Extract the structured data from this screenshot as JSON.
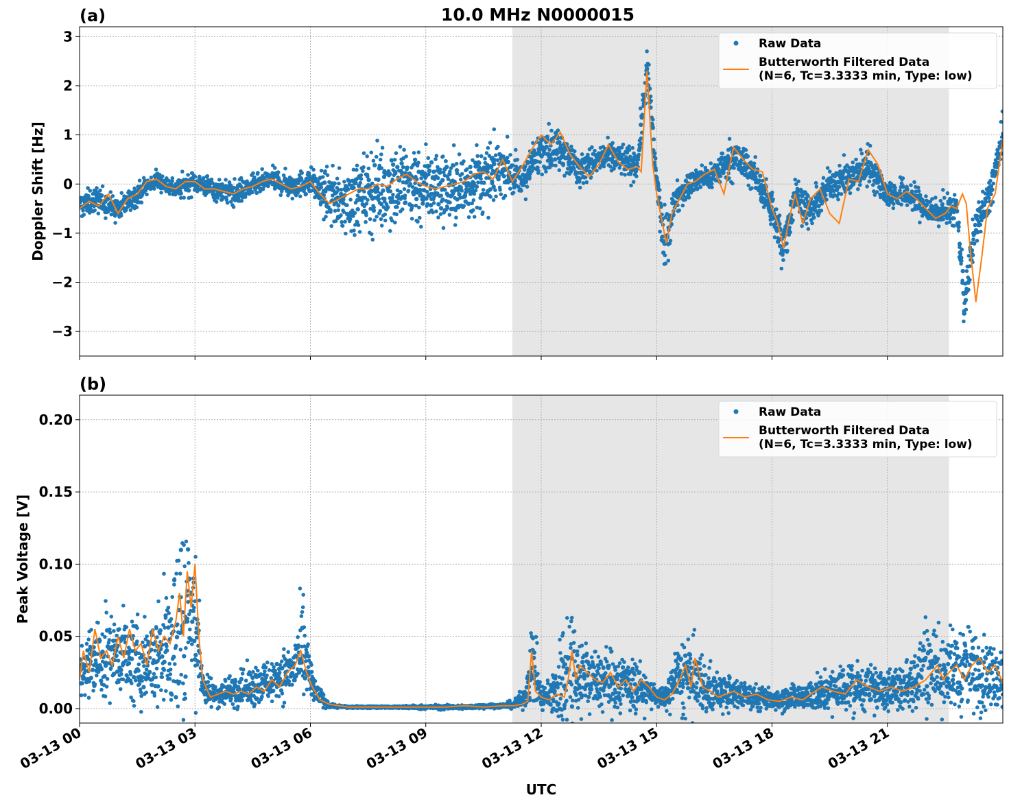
{
  "figure": {
    "title": "10.0 MHz N0000015",
    "xlabel": "UTC",
    "x_tick_labels": [
      "03-13 00",
      "03-13 03",
      "03-13 06",
      "03-13 09",
      "03-13 12",
      "03-13 15",
      "03-13 18",
      "03-13 21"
    ],
    "x_tick_hours": [
      0,
      3,
      6,
      9,
      12,
      15,
      18,
      21
    ],
    "x_range_hours": [
      0,
      24
    ],
    "shaded_interval_hours": [
      11.25,
      22.6
    ],
    "colors": {
      "raw": "#1f77b4",
      "filtered": "#ff7f0e",
      "shade": "#e6e6e6",
      "grid": "#b0b0b0"
    },
    "legend_placement": "top-right"
  },
  "chart_data": [
    {
      "type": "scatter",
      "panel_label": "(a)",
      "ylabel": "Doppler Shift [Hz]",
      "ylim": [
        -3.5,
        3.2
      ],
      "y_ticks": [
        3,
        2,
        1,
        0,
        -1,
        -2,
        -3
      ],
      "y_tick_labels": [
        "3",
        "2",
        "1",
        "0",
        "−1",
        "−2",
        "−3"
      ],
      "grid": true,
      "legend": [
        {
          "label": "Raw Data",
          "marker": "dot"
        },
        {
          "label": "Butterworth Filtered Data",
          "label_line2": "(N=6, Tc=3.3333 min, Type: low)",
          "marker": "line"
        }
      ],
      "series": [
        {
          "name": "Raw Data",
          "x_hours": [
            0,
            0.5,
            1,
            1.5,
            2,
            2.5,
            3,
            3.5,
            4,
            4.5,
            5,
            5.5,
            6,
            6.5,
            7,
            7.5,
            8,
            8.5,
            9,
            9.5,
            10,
            10.5,
            11,
            11.5,
            12,
            12.5,
            13,
            13.5,
            14,
            14.5,
            14.75,
            15,
            15.2,
            15.5,
            16,
            16.5,
            17,
            17.5,
            18,
            18.3,
            18.6,
            19,
            19.5,
            20,
            20.5,
            21,
            21.5,
            22,
            22.5,
            22.8,
            23,
            23.3,
            23.6,
            24
          ],
          "center": [
            -0.45,
            -0.3,
            -0.55,
            -0.2,
            0.1,
            -0.1,
            0.05,
            -0.1,
            -0.2,
            -0.05,
            0.1,
            -0.05,
            0.05,
            -0.3,
            -0.4,
            -0.15,
            -0.05,
            0.0,
            0.0,
            -0.1,
            -0.05,
            0.1,
            0.35,
            0.05,
            0.7,
            0.75,
            0.25,
            0.5,
            0.55,
            0.35,
            2.4,
            0.1,
            -1.3,
            -0.25,
            0.05,
            0.2,
            0.55,
            0.25,
            -0.5,
            -1.3,
            -0.2,
            -0.6,
            0.0,
            0.1,
            0.4,
            -0.2,
            -0.2,
            -0.5,
            -0.55,
            -0.5,
            -2.4,
            -0.8,
            -0.4,
            0.9
          ],
          "spread": [
            0.35,
            0.35,
            0.35,
            0.3,
            0.25,
            0.3,
            0.3,
            0.3,
            0.35,
            0.3,
            0.3,
            0.35,
            0.35,
            0.7,
            0.9,
            1.1,
            1.2,
            1.2,
            1.1,
            1.0,
            1.0,
            0.9,
            0.7,
            0.5,
            0.55,
            0.55,
            0.45,
            0.45,
            0.45,
            0.45,
            0.6,
            0.45,
            0.8,
            0.4,
            0.35,
            0.4,
            0.55,
            0.45,
            0.5,
            0.7,
            0.5,
            0.45,
            0.4,
            0.5,
            0.55,
            0.4,
            0.4,
            0.45,
            0.45,
            0.4,
            0.7,
            0.5,
            0.5,
            0.6
          ]
        },
        {
          "name": "Butterworth Filtered Data",
          "x_hours": [
            0,
            0.25,
            0.5,
            0.75,
            1,
            1.25,
            1.5,
            1.75,
            2,
            2.25,
            2.5,
            2.75,
            3,
            3.25,
            3.5,
            3.75,
            4,
            4.25,
            4.5,
            4.75,
            5,
            5.25,
            5.5,
            5.75,
            6,
            6.25,
            6.5,
            6.75,
            7,
            7.25,
            7.5,
            7.75,
            8,
            8.25,
            8.5,
            8.75,
            9,
            9.25,
            9.5,
            9.75,
            10,
            10.25,
            10.5,
            10.75,
            11,
            11.25,
            11.5,
            11.75,
            12,
            12.25,
            12.5,
            12.75,
            13,
            13.25,
            13.5,
            13.75,
            14,
            14.25,
            14.5,
            14.6,
            14.75,
            14.9,
            15,
            15.1,
            15.25,
            15.4,
            15.6,
            15.8,
            16,
            16.25,
            16.5,
            16.75,
            17,
            17.25,
            17.5,
            17.75,
            18,
            18.15,
            18.3,
            18.45,
            18.6,
            18.8,
            19,
            19.25,
            19.5,
            19.75,
            20,
            20.25,
            20.5,
            20.75,
            21,
            21.25,
            21.5,
            21.75,
            22,
            22.25,
            22.5,
            22.65,
            22.8,
            22.95,
            23.05,
            23.15,
            23.3,
            23.45,
            23.6,
            23.8,
            24
          ],
          "values": [
            -0.5,
            -0.35,
            -0.45,
            -0.2,
            -0.6,
            -0.3,
            -0.2,
            0.05,
            0.1,
            -0.05,
            -0.1,
            0.05,
            0.05,
            -0.1,
            -0.1,
            -0.15,
            -0.2,
            -0.1,
            -0.05,
            0.05,
            0.1,
            0.0,
            -0.1,
            -0.05,
            0.05,
            -0.2,
            -0.4,
            -0.3,
            -0.2,
            -0.1,
            -0.1,
            0.0,
            -0.05,
            0.1,
            0.2,
            0.05,
            -0.05,
            -0.1,
            -0.05,
            0.0,
            0.05,
            0.2,
            0.25,
            0.1,
            0.5,
            0.05,
            0.35,
            0.7,
            1.0,
            0.8,
            1.05,
            0.6,
            0.35,
            0.15,
            0.4,
            0.8,
            0.45,
            0.3,
            0.35,
            0.25,
            2.3,
            0.4,
            -0.2,
            -0.6,
            -1.2,
            -0.6,
            -0.3,
            0.0,
            0.05,
            0.2,
            0.3,
            -0.2,
            0.75,
            0.5,
            0.3,
            0.25,
            -0.5,
            -0.8,
            -1.3,
            -0.7,
            -0.2,
            -0.8,
            -0.3,
            -0.1,
            -0.6,
            -0.8,
            0.1,
            0.05,
            0.7,
            0.4,
            -0.2,
            -0.3,
            -0.15,
            -0.3,
            -0.5,
            -0.7,
            -0.6,
            -0.45,
            -0.5,
            -0.2,
            -0.4,
            -1.3,
            -2.4,
            -1.5,
            -0.5,
            -0.2,
            0.9
          ]
        }
      ]
    },
    {
      "type": "scatter",
      "panel_label": "(b)",
      "ylabel": "Peak Voltage [V]",
      "ylim": [
        -0.01,
        0.217
      ],
      "y_ticks": [
        0.2,
        0.15,
        0.1,
        0.05,
        0.0
      ],
      "y_tick_labels": [
        "0.20",
        "0.15",
        "0.10",
        "0.05",
        "0.00"
      ],
      "grid": true,
      "legend": [
        {
          "label": "Raw Data",
          "marker": "dot"
        },
        {
          "label": "Butterworth Filtered Data",
          "label_line2": "(N=6, Tc=3.3333 min, Type: low)",
          "marker": "line"
        }
      ],
      "series": [
        {
          "name": "Raw Data",
          "x_hours": [
            0,
            0.5,
            1,
            1.5,
            2,
            2.5,
            2.75,
            3,
            3.25,
            3.5,
            4,
            4.5,
            5,
            5.5,
            5.8,
            6.1,
            6.5,
            7,
            8,
            9,
            10,
            11,
            11.3,
            11.6,
            11.75,
            12,
            12.3,
            12.6,
            12.8,
            13,
            13.5,
            14,
            14.5,
            15,
            15.2,
            15.5,
            15.8,
            16,
            16.5,
            17,
            17.5,
            18,
            18.5,
            19,
            19.5,
            20,
            20.5,
            21,
            21.5,
            22,
            22.5,
            23,
            23.5,
            24
          ],
          "center": [
            0.025,
            0.035,
            0.04,
            0.03,
            0.035,
            0.05,
            0.07,
            0.06,
            0.012,
            0.01,
            0.013,
            0.015,
            0.02,
            0.025,
            0.04,
            0.012,
            0.002,
            0.001,
            0.001,
            0.001,
            0.001,
            0.002,
            0.003,
            0.008,
            0.035,
            0.008,
            0.008,
            0.025,
            0.03,
            0.025,
            0.02,
            0.018,
            0.015,
            0.008,
            0.006,
            0.02,
            0.022,
            0.018,
            0.012,
            0.01,
            0.008,
            0.006,
            0.008,
            0.009,
            0.012,
            0.015,
            0.015,
            0.012,
            0.015,
            0.03,
            0.025,
            0.028,
            0.025,
            0.02
          ],
          "spread": [
            0.025,
            0.045,
            0.035,
            0.04,
            0.045,
            0.1,
            0.12,
            0.06,
            0.015,
            0.012,
            0.015,
            0.018,
            0.02,
            0.025,
            0.045,
            0.012,
            0.002,
            0.001,
            0.001,
            0.002,
            0.002,
            0.002,
            0.004,
            0.01,
            0.04,
            0.012,
            0.02,
            0.06,
            0.065,
            0.035,
            0.03,
            0.03,
            0.025,
            0.01,
            0.01,
            0.03,
            0.04,
            0.035,
            0.02,
            0.015,
            0.012,
            0.01,
            0.012,
            0.015,
            0.02,
            0.025,
            0.02,
            0.02,
            0.025,
            0.045,
            0.035,
            0.04,
            0.035,
            0.025
          ]
        },
        {
          "name": "Butterworth Filtered Data",
          "x_hours": [
            0,
            0.1,
            0.25,
            0.4,
            0.55,
            0.7,
            0.85,
            1,
            1.15,
            1.3,
            1.45,
            1.6,
            1.75,
            1.9,
            2.05,
            2.2,
            2.35,
            2.5,
            2.6,
            2.7,
            2.8,
            2.9,
            3.0,
            3.1,
            3.2,
            3.4,
            3.6,
            3.8,
            4,
            4.2,
            4.4,
            4.6,
            4.8,
            5,
            5.2,
            5.4,
            5.6,
            5.75,
            5.9,
            6.05,
            6.25,
            6.5,
            6.75,
            7,
            7.5,
            8,
            8.5,
            9,
            9.5,
            10,
            10.5,
            11,
            11.3,
            11.5,
            11.65,
            11.75,
            11.85,
            12,
            12.2,
            12.4,
            12.6,
            12.7,
            12.8,
            12.9,
            13.0,
            13.2,
            13.4,
            13.6,
            13.8,
            14.0,
            14.2,
            14.4,
            14.6,
            14.8,
            15.0,
            15.2,
            15.4,
            15.6,
            15.75,
            15.9,
            16.0,
            16.2,
            16.4,
            16.6,
            16.8,
            17.0,
            17.3,
            17.6,
            17.9,
            18.2,
            18.5,
            18.8,
            19.0,
            19.3,
            19.6,
            19.9,
            20.2,
            20.5,
            20.8,
            21.1,
            21.4,
            21.7,
            22.0,
            22.15,
            22.3,
            22.45,
            22.6,
            22.8,
            23.0,
            23.2,
            23.4,
            23.6,
            23.8,
            24
          ],
          "values": [
            0.02,
            0.04,
            0.025,
            0.055,
            0.035,
            0.04,
            0.03,
            0.05,
            0.035,
            0.055,
            0.04,
            0.045,
            0.03,
            0.055,
            0.04,
            0.05,
            0.045,
            0.06,
            0.08,
            0.05,
            0.095,
            0.07,
            0.1,
            0.05,
            0.02,
            0.008,
            0.01,
            0.012,
            0.01,
            0.012,
            0.01,
            0.015,
            0.012,
            0.02,
            0.015,
            0.025,
            0.03,
            0.04,
            0.025,
            0.015,
            0.006,
            0.003,
            0.002,
            0.001,
            0.001,
            0.001,
            0.001,
            0.001,
            0.001,
            0.002,
            0.001,
            0.002,
            0.002,
            0.003,
            0.005,
            0.04,
            0.012,
            0.008,
            0.006,
            0.01,
            0.008,
            0.02,
            0.04,
            0.02,
            0.03,
            0.025,
            0.02,
            0.018,
            0.025,
            0.015,
            0.02,
            0.012,
            0.02,
            0.015,
            0.008,
            0.006,
            0.01,
            0.02,
            0.03,
            0.015,
            0.035,
            0.015,
            0.012,
            0.008,
            0.01,
            0.012,
            0.008,
            0.01,
            0.006,
            0.005,
            0.008,
            0.006,
            0.01,
            0.015,
            0.012,
            0.01,
            0.02,
            0.015,
            0.012,
            0.015,
            0.012,
            0.015,
            0.02,
            0.025,
            0.03,
            0.02,
            0.025,
            0.03,
            0.02,
            0.03,
            0.035,
            0.025,
            0.03,
            0.018
          ]
        }
      ]
    }
  ]
}
